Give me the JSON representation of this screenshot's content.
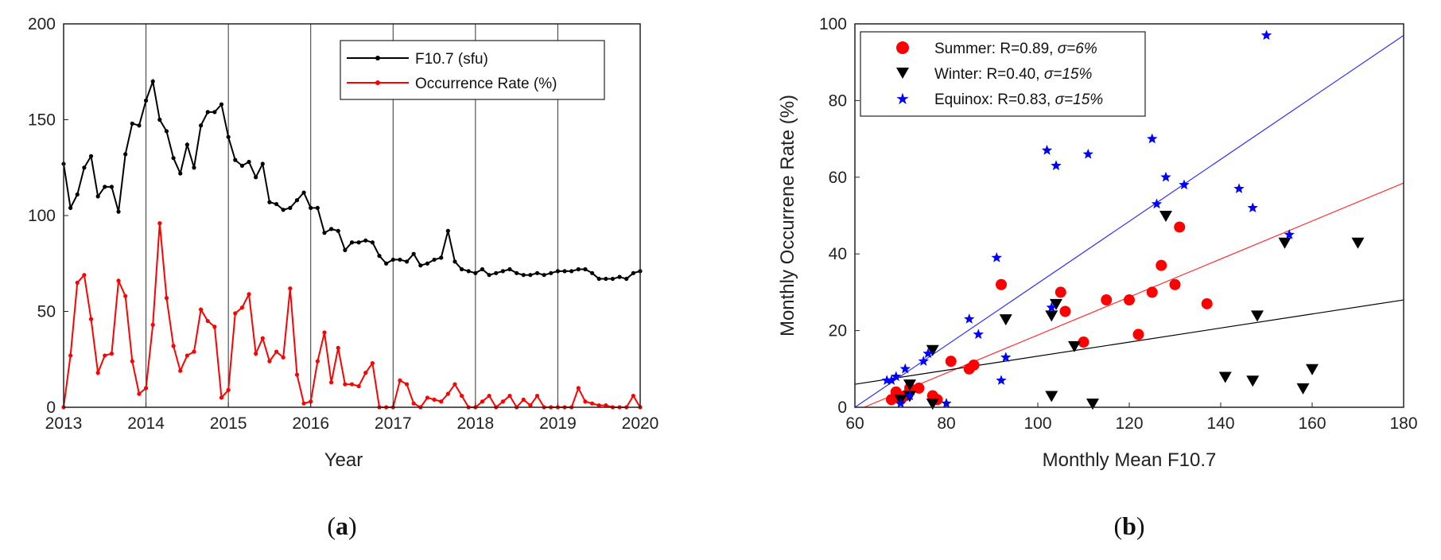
{
  "colors": {
    "f107": "#000000",
    "occ": "#ff0000",
    "summer": "#ff0000",
    "winter": "#000000",
    "equinox": "#0000ff"
  },
  "chart_data": [
    {
      "type": "line",
      "panel": "(a)",
      "caption_parts": [
        "(",
        "a",
        ")"
      ],
      "xlabel": "Year",
      "ylabel": "",
      "xlim": [
        2013,
        2020
      ],
      "ylim": [
        0,
        200
      ],
      "xticks": [
        "2013",
        "2014",
        "2015",
        "2016",
        "2017",
        "2018",
        "2019",
        "2020"
      ],
      "yticks": [
        "0",
        "50",
        "100",
        "150",
        "200"
      ],
      "vlines": [
        2014,
        2015,
        2016,
        2017,
        2018,
        2019
      ],
      "legend_position": "top-right",
      "series": [
        {
          "name": "F10.7 (sfu)",
          "color": "#000000",
          "values": [
            127,
            104,
            111,
            125,
            131,
            110,
            115,
            115,
            102,
            132,
            148,
            147,
            160,
            170,
            150,
            144,
            130,
            122,
            137,
            125,
            147,
            154,
            154,
            158,
            141,
            129,
            126,
            128,
            120,
            127,
            107,
            106,
            103,
            104,
            108,
            112,
            104,
            104,
            91,
            93,
            92,
            82,
            86,
            86,
            87,
            86,
            79,
            75,
            77,
            77,
            76,
            80,
            74,
            75,
            77,
            78,
            92,
            76,
            72,
            71,
            70,
            72,
            69,
            70,
            71,
            72,
            70,
            69,
            69,
            70,
            69,
            70,
            71,
            71,
            71,
            72,
            72,
            70,
            67,
            67,
            67,
            68,
            67,
            70,
            71
          ]
        },
        {
          "name": "Occurrence Rate (%)",
          "color": "#ff0000",
          "values": [
            0,
            27,
            65,
            69,
            46,
            18,
            27,
            28,
            66,
            58,
            24,
            7,
            10,
            43,
            96,
            57,
            32,
            19,
            27,
            29,
            51,
            45,
            42,
            5,
            9,
            49,
            52,
            59,
            28,
            36,
            24,
            29,
            26,
            62,
            17,
            2,
            3,
            24,
            39,
            13,
            31,
            12,
            12,
            11,
            18,
            23,
            0,
            0,
            0,
            14,
            12,
            2,
            0,
            5,
            4,
            3,
            7,
            12,
            6,
            0,
            0,
            3,
            6,
            0,
            3,
            6,
            0,
            4,
            1,
            6,
            0,
            0,
            0,
            0,
            0,
            10,
            3,
            2,
            1,
            1,
            0,
            0,
            0,
            6,
            0
          ]
        }
      ]
    },
    {
      "type": "scatter",
      "panel": "(b)",
      "caption_parts": [
        "(",
        "b",
        ")"
      ],
      "xlabel": "Monthly Mean F10.7",
      "ylabel": "Monthly Occurrene Rate (%)",
      "xlim": [
        60,
        180
      ],
      "ylim": [
        0,
        100
      ],
      "xticks": [
        "60",
        "80",
        "100",
        "120",
        "140",
        "160",
        "180"
      ],
      "yticks": [
        "0",
        "20",
        "40",
        "60",
        "80",
        "100"
      ],
      "legend_position": "top-left",
      "series": [
        {
          "name": "Summer",
          "legend_label": "Summer: R=0.89, ",
          "sigma_text": "σ=6%",
          "marker": "circle",
          "color": "#ff0000",
          "points": [
            [
              68,
              2
            ],
            [
              69,
              4
            ],
            [
              70,
              2
            ],
            [
              71,
              3
            ],
            [
              72,
              5
            ],
            [
              74,
              5
            ],
            [
              77,
              3
            ],
            [
              78,
              2
            ],
            [
              81,
              12
            ],
            [
              85,
              10
            ],
            [
              86,
              11
            ],
            [
              92,
              32
            ],
            [
              105,
              30
            ],
            [
              106,
              25
            ],
            [
              110,
              17
            ],
            [
              115,
              28
            ],
            [
              120,
              28
            ],
            [
              122,
              19
            ],
            [
              125,
              30
            ],
            [
              127,
              37
            ],
            [
              130,
              32
            ],
            [
              131,
              47
            ],
            [
              137,
              27
            ]
          ],
          "fit": [
            [
              62,
              0
            ],
            [
              180,
              58.5
            ]
          ]
        },
        {
          "name": "Winter",
          "legend_label": "Winter: R=0.40, ",
          "sigma_text": "σ=15%",
          "marker": "triangle-down",
          "color": "#000000",
          "points": [
            [
              70,
              2
            ],
            [
              72,
              6
            ],
            [
              72,
              3
            ],
            [
              77,
              15
            ],
            [
              77,
              1
            ],
            [
              93,
              23
            ],
            [
              103,
              24
            ],
            [
              103,
              3
            ],
            [
              104,
              27
            ],
            [
              108,
              16
            ],
            [
              112,
              1
            ],
            [
              128,
              50
            ],
            [
              141,
              8
            ],
            [
              147,
              7
            ],
            [
              148,
              24
            ],
            [
              154,
              43
            ],
            [
              158,
              5
            ],
            [
              160,
              10
            ],
            [
              170,
              43
            ]
          ],
          "fit": [
            [
              60,
              6
            ],
            [
              180,
              28
            ]
          ]
        },
        {
          "name": "Equinox",
          "legend_label": "Equinox: R=0.83, ",
          "sigma_text": "σ=15%",
          "marker": "star",
          "color": "#0000ff",
          "points": [
            [
              67,
              7
            ],
            [
              68,
              7
            ],
            [
              69,
              8
            ],
            [
              70,
              1
            ],
            [
              71,
              10
            ],
            [
              72,
              3
            ],
            [
              75,
              12
            ],
            [
              76,
              14
            ],
            [
              80,
              1
            ],
            [
              85,
              23
            ],
            [
              87,
              19
            ],
            [
              92,
              7
            ],
            [
              93,
              13
            ],
            [
              91,
              39
            ],
            [
              103,
              26
            ],
            [
              102,
              67
            ],
            [
              104,
              63
            ],
            [
              111,
              66
            ],
            [
              125,
              70
            ],
            [
              126,
              53
            ],
            [
              128,
              60
            ],
            [
              132,
              58
            ],
            [
              144,
              57
            ],
            [
              147,
              52
            ],
            [
              150,
              97
            ],
            [
              155,
              45
            ]
          ],
          "fit": [
            [
              60,
              0
            ],
            [
              180,
              97
            ]
          ]
        }
      ]
    }
  ]
}
